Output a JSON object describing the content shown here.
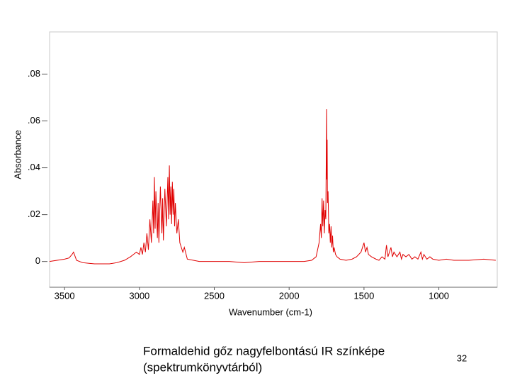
{
  "chart_data": {
    "type": "line",
    "x_label": "Wavenumber (cm-1)",
    "y_label": "Absorbance",
    "xlim": [
      3600,
      610
    ],
    "ylim": [
      -0.011,
      0.098
    ],
    "xticks": [
      3500,
      3000,
      2500,
      2000,
      1500,
      1000
    ],
    "yticks": [
      0,
      {
        "value": 0.02,
        "label": ".02"
      },
      {
        "value": 0.04,
        "label": ".04"
      },
      {
        "value": 0.06,
        "label": ".06"
      },
      {
        "value": 0.08,
        "label": ".08"
      }
    ],
    "color": "#e00000",
    "x": [
      3600,
      3550,
      3500,
      3470,
      3450,
      3440,
      3420,
      3380,
      3300,
      3200,
      3150,
      3100,
      3060,
      3040,
      3020,
      3000,
      2990,
      2980,
      2970,
      2960,
      2950,
      2940,
      2930,
      2920,
      2910,
      2905,
      2900,
      2895,
      2890,
      2880,
      2875,
      2870,
      2860,
      2850,
      2845,
      2840,
      2830,
      2820,
      2810,
      2805,
      2800,
      2795,
      2790,
      2785,
      2780,
      2775,
      2770,
      2765,
      2760,
      2750,
      2740,
      2730,
      2720,
      2710,
      2700,
      2680,
      2600,
      2500,
      2400,
      2300,
      2200,
      2100,
      2000,
      1900,
      1850,
      1820,
      1800,
      1790,
      1785,
      1780,
      1775,
      1770,
      1765,
      1760,
      1755,
      1750,
      1748,
      1746,
      1744,
      1740,
      1735,
      1730,
      1725,
      1720,
      1715,
      1710,
      1705,
      1700,
      1690,
      1680,
      1660,
      1620,
      1580,
      1550,
      1520,
      1500,
      1490,
      1480,
      1470,
      1450,
      1420,
      1400,
      1380,
      1360,
      1350,
      1340,
      1320,
      1310,
      1300,
      1280,
      1260,
      1250,
      1240,
      1220,
      1200,
      1180,
      1160,
      1140,
      1120,
      1110,
      1100,
      1080,
      1060,
      1040,
      1000,
      950,
      900,
      800,
      700,
      620
    ],
    "values": [
      0,
      0.0005,
      0.001,
      0.0015,
      0.003,
      0.004,
      0.0005,
      -0.0005,
      -0.001,
      -0.001,
      -0.0005,
      0.0005,
      0.002,
      0.003,
      0.004,
      0.003,
      0.006,
      0.003,
      0.008,
      0.004,
      0.012,
      0.005,
      0.018,
      0.008,
      0.026,
      0.012,
      0.036,
      0.014,
      0.03,
      0.01,
      0.025,
      0.008,
      0.032,
      0.012,
      0.027,
      0.009,
      0.031,
      0.015,
      0.036,
      0.018,
      0.041,
      0.02,
      0.032,
      0.016,
      0.034,
      0.02,
      0.031,
      0.015,
      0.025,
      0.012,
      0.018,
      0.008,
      0.006,
      0.004,
      0.006,
      0.001,
      0,
      0,
      0,
      -0.0005,
      0,
      0,
      0,
      0,
      0.0005,
      0.002,
      0.008,
      0.016,
      0.01,
      0.027,
      0.015,
      0.026,
      0.012,
      0.022,
      0.018,
      0.065,
      0.035,
      0.052,
      0.025,
      0.03,
      0.012,
      0.016,
      0.008,
      0.015,
      0.006,
      0.011,
      0.004,
      0.006,
      0.003,
      0.002,
      0.001,
      0.0005,
      0.001,
      0.002,
      0.004,
      0.008,
      0.004,
      0.006,
      0.003,
      0.002,
      0.001,
      0.0005,
      0.002,
      0.001,
      0.007,
      0.002,
      0.006,
      0.002,
      0.004,
      0.002,
      0.004,
      0.001,
      0.003,
      0.002,
      0.003,
      0.001,
      0.002,
      0.001,
      0.004,
      0.001,
      0.003,
      0.001,
      0.002,
      0.001,
      0.0005,
      0.001,
      0.0005,
      0.0005,
      0.001,
      0.0005
    ]
  },
  "caption": [
    "Formaldehid gőz nagyfelbontású IR színképe",
    "(spektrumkönyvtárból)"
  ],
  "page_number": "32"
}
